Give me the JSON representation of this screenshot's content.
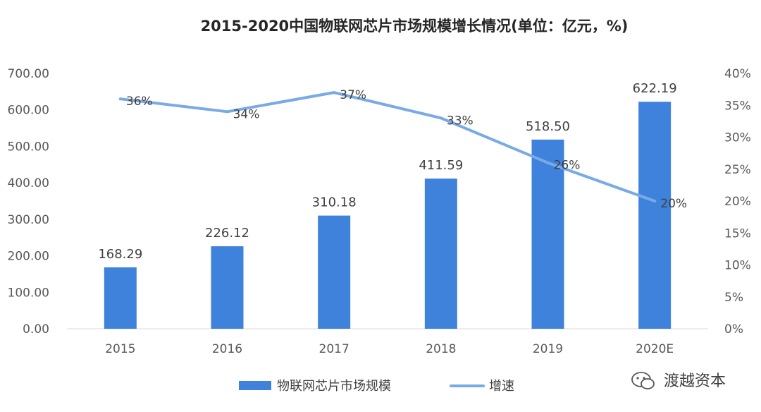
{
  "chart_data": {
    "type": "bar",
    "title": "2015-2020中国物联网芯片市场规模增长情况(单位：亿元，%)",
    "categories": [
      "2015",
      "2016",
      "2017",
      "2018",
      "2019",
      "2020E"
    ],
    "series": [
      {
        "name": "物联网芯片市场规模",
        "type": "bar",
        "axis": "left",
        "values": [
          168.29,
          226.12,
          310.18,
          411.59,
          518.5,
          622.19
        ],
        "value_labels": [
          "168.29",
          "226.12",
          "310.18",
          "411.59",
          "518.50",
          "622.19"
        ]
      },
      {
        "name": "增速",
        "type": "line",
        "axis": "right",
        "values": [
          36,
          34,
          37,
          33,
          26,
          20
        ],
        "value_labels": [
          "36%",
          "34%",
          "37%",
          "33%",
          "26%",
          "20%"
        ]
      }
    ],
    "y_left": {
      "min": 0,
      "max": 700,
      "step": 100,
      "tick_labels": [
        "0.00",
        "100.00",
        "200.00",
        "300.00",
        "400.00",
        "500.00",
        "600.00",
        "700.00"
      ]
    },
    "y_right": {
      "min": 0,
      "max": 40,
      "step": 5,
      "tick_labels": [
        "0%",
        "5%",
        "10%",
        "15%",
        "20%",
        "25%",
        "30%",
        "35%",
        "40%"
      ]
    },
    "grid": false,
    "legend_position": "bottom",
    "colors": {
      "bar": "#3f82dc",
      "line": "#78aae6",
      "text": "#404040",
      "title": "#262626"
    }
  },
  "watermark": {
    "source_text": "渡越资本",
    "icon": "wechat-icon"
  }
}
